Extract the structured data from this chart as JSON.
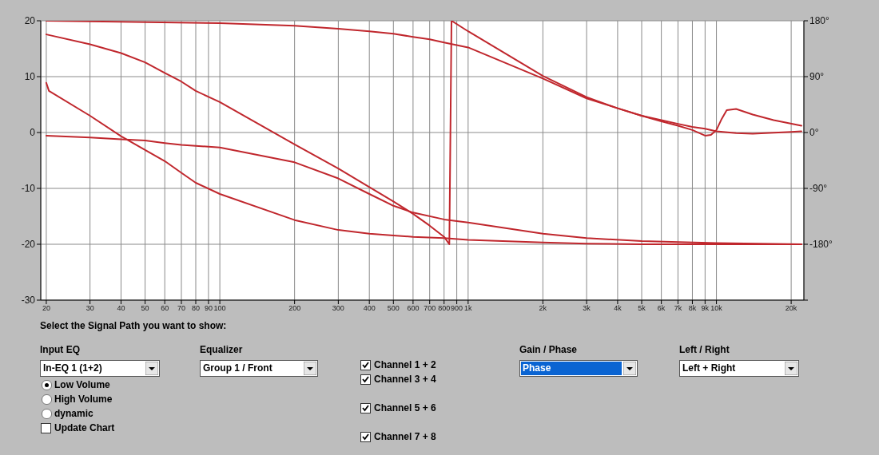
{
  "chart_data": {
    "type": "line",
    "grid": true,
    "log": "x",
    "marker": "none",
    "line_style": "solid",
    "xlim": [
      19,
      22500
    ],
    "ylim": [
      -30,
      20
    ],
    "y2lim": [
      -270,
      180
    ],
    "xticks": [
      20,
      30,
      40,
      50,
      60,
      70,
      80,
      90,
      100,
      200,
      300,
      400,
      500,
      600,
      700,
      800,
      900,
      {
        "value": 1000,
        "label": "1k"
      },
      {
        "value": 2000,
        "label": "2k"
      },
      {
        "value": 3000,
        "label": "3k"
      },
      {
        "value": 4000,
        "label": "4k"
      },
      {
        "value": 5000,
        "label": "5k"
      },
      {
        "value": 6000,
        "label": "6k"
      },
      {
        "value": 7000,
        "label": "7k"
      },
      {
        "value": 8000,
        "label": "8k"
      },
      {
        "value": 9000,
        "label": "9k"
      },
      {
        "value": 10000,
        "label": "10k"
      },
      {
        "value": 20000,
        "label": "20k"
      }
    ],
    "yticks": [
      -30,
      -20,
      -10,
      0,
      10,
      20
    ],
    "y2ticks": [
      {
        "value": -270,
        "label": null
      },
      {
        "value": -180,
        "label": "-180°"
      },
      {
        "value": -90,
        "label": "-90°"
      },
      {
        "value": 0,
        "label": "0°"
      },
      {
        "value": 90,
        "label": "90°"
      },
      {
        "value": 180,
        "label": "180°"
      }
    ],
    "series": [
      {
        "color": "#c0272d",
        "axis": "y2",
        "x": [
          20,
          100,
          200,
          300,
          400,
          500,
          600,
          700,
          800,
          1000,
          2000,
          3000,
          4000,
          5000,
          6000,
          7000,
          8000,
          9000,
          10000,
          12000,
          14000,
          20000,
          22000
        ],
        "values": [
          180,
          176,
          172,
          167,
          163,
          159,
          154,
          150,
          145,
          137,
          87,
          55,
          39,
          27,
          20,
          14,
          9,
          6,
          2,
          -1,
          -2,
          1,
          2
        ]
      },
      {
        "color": "#c0272d",
        "axis": "y2",
        "x": [
          20,
          30,
          40,
          50,
          60,
          70,
          80,
          100,
          200,
          300,
          400,
          500,
          600,
          700,
          800,
          840,
          857,
          1000,
          2000,
          3000,
          4000,
          5000,
          6000,
          7000,
          8000,
          9000,
          9500,
          10000,
          10500,
          11000,
          12000,
          14000,
          17000,
          22000
        ],
        "values": [
          158,
          142,
          128,
          113,
          96,
          82,
          67,
          49,
          -19,
          -58,
          -88,
          -111,
          -131,
          -150,
          -168,
          -180,
          180,
          163,
          91,
          57,
          39,
          27,
          18,
          11,
          4,
          -5,
          -4,
          4,
          22,
          36,
          38,
          29,
          20,
          11
        ]
      },
      {
        "color": "#c0272d",
        "axis": "y2",
        "x": [
          20,
          20.5,
          30,
          40,
          50,
          60,
          70,
          80,
          100,
          200,
          300,
          400,
          500,
          600,
          800,
          1000,
          2000,
          3000,
          5000,
          22000
        ],
        "values": [
          80,
          67,
          27,
          -6,
          -28,
          -46,
          -65,
          -81,
          -99,
          -141,
          -157,
          -163,
          -166,
          -168,
          -170,
          -173,
          -177,
          -179,
          -180,
          -180
        ]
      },
      {
        "color": "#c0272d",
        "axis": "y2",
        "x": [
          20,
          30,
          40,
          50,
          60,
          70,
          100,
          200,
          300,
          400,
          500,
          600,
          800,
          1000,
          2000,
          3000,
          5000,
          10000,
          22000
        ],
        "values": [
          -5,
          -8,
          -11,
          -13,
          -17,
          -20,
          -24,
          -48,
          -74,
          -99,
          -118,
          -129,
          -140,
          -145,
          -163,
          -170,
          -175,
          -178,
          -180
        ]
      }
    ],
    "annotations": [
      "Select the Signal Path you want to show:",
      "Input EQ",
      "In-EQ 1 (1+2)",
      "Low Volume",
      "High Volume",
      "dynamic",
      "Update Chart",
      "Equalizer",
      "Group 1 / Front",
      "Channel 1 + 2",
      "Channel 3 + 4",
      "Channel 5 + 6",
      "Channel 7 + 8",
      "Gain / Phase",
      "Phase",
      "Left / Right",
      "Left + Right"
    ]
  }
}
